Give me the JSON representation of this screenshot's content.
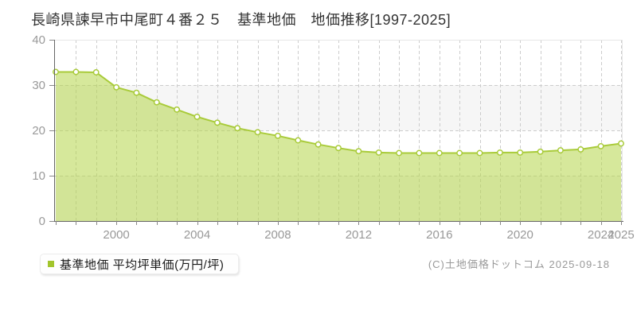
{
  "chart": {
    "title": "長崎県諫早市中尾町４番２５　基準地価　地価推移[1997-2025]"
  },
  "legend": {
    "label": "基準地価 平均坪単価(万円/坪)",
    "marker_color": "#a2c52c"
  },
  "footer": {
    "copyright": "(C)土地価格ドットコム 2025-09-18"
  },
  "chart_data": {
    "type": "area",
    "title": "長崎県諫早市中尾町４番２５ 基準地価 地価推移[1997-2025]",
    "series_name": "基準地価 平均坪単価(万円/坪)",
    "ylabel": "平均坪単価(万円/坪)",
    "xlabel": "",
    "x": [
      1997,
      1998,
      1999,
      2000,
      2001,
      2002,
      2003,
      2004,
      2005,
      2006,
      2007,
      2008,
      2009,
      2010,
      2011,
      2012,
      2013,
      2014,
      2015,
      2016,
      2017,
      2018,
      2019,
      2020,
      2021,
      2022,
      2023,
      2024,
      2025
    ],
    "values": [
      32.9,
      32.9,
      32.8,
      29.5,
      28.3,
      26.2,
      24.6,
      23.0,
      21.7,
      20.5,
      19.6,
      18.8,
      17.8,
      16.9,
      16.1,
      15.4,
      15.1,
      15.0,
      15.0,
      15.0,
      15.0,
      15.0,
      15.1,
      15.1,
      15.3,
      15.6,
      15.8,
      16.5,
      17.1
    ],
    "ylim": [
      0,
      40
    ],
    "y_ticks": [
      0,
      10,
      20,
      30,
      40
    ],
    "x_tick_labels": [
      "2000",
      "2004",
      "2008",
      "2012",
      "2016",
      "2020",
      "2024",
      "2025"
    ],
    "grid": "dashed",
    "legend_position": "bottom-left",
    "colors": {
      "line": "#a9cb3a",
      "fill": "#b4d648",
      "fill_opacity": 0.55,
      "marker_fill": "#ffffff",
      "marker_stroke": "#a9cb3a",
      "band": "#f6f6f6",
      "grid": "#cccccc",
      "axis": "#666666",
      "frame": "#e6e6e6",
      "tick_label": "#999999"
    }
  }
}
